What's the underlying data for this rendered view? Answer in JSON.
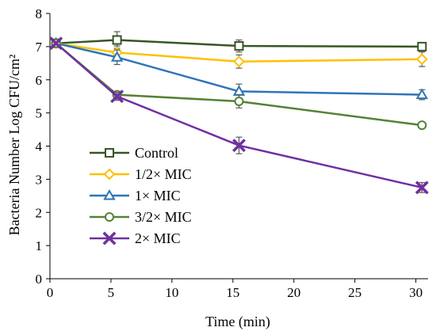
{
  "chart_data": {
    "type": "line",
    "title": "",
    "xlabel": "Time (min)",
    "ylabel": "Bacteria Number  Log CFU/cm²",
    "xlim": [
      0,
      31
    ],
    "ylim": [
      0,
      8
    ],
    "xticks": [
      0,
      5,
      10,
      15,
      20,
      25,
      30
    ],
    "yticks": [
      0,
      1,
      2,
      3,
      4,
      5,
      6,
      7,
      8
    ],
    "grid": false,
    "legend_position": "lower-left",
    "x": [
      0.5,
      5.5,
      15.5,
      30.5
    ],
    "series": [
      {
        "name": "Control",
        "color": "#375623",
        "marker": "square",
        "values": [
          7.1,
          7.2,
          7.02,
          7.0
        ],
        "errors": [
          0.05,
          0.25,
          0.18,
          0.08
        ]
      },
      {
        "name": "1/2× MIC",
        "color": "#FFC000",
        "marker": "diamond",
        "values": [
          7.1,
          6.82,
          6.55,
          6.62
        ],
        "errors": [
          0.05,
          0.2,
          0.2,
          0.22
        ]
      },
      {
        "name": "1× MIC",
        "color": "#2E75B6",
        "marker": "triangle",
        "values": [
          7.1,
          6.68,
          5.65,
          5.55
        ],
        "errors": [
          0.05,
          0.22,
          0.22,
          0.15
        ]
      },
      {
        "name": "3/2× MIC",
        "color": "#548235",
        "marker": "circle",
        "values": [
          7.1,
          5.55,
          5.35,
          4.63
        ],
        "errors": [
          0.05,
          0.1,
          0.2,
          0.08
        ]
      },
      {
        "name": "2× MIC",
        "color": "#7030A0",
        "marker": "x",
        "values": [
          7.1,
          5.5,
          4.02,
          2.75
        ],
        "errors": [
          0.05,
          0.12,
          0.25,
          0.15
        ]
      }
    ]
  }
}
